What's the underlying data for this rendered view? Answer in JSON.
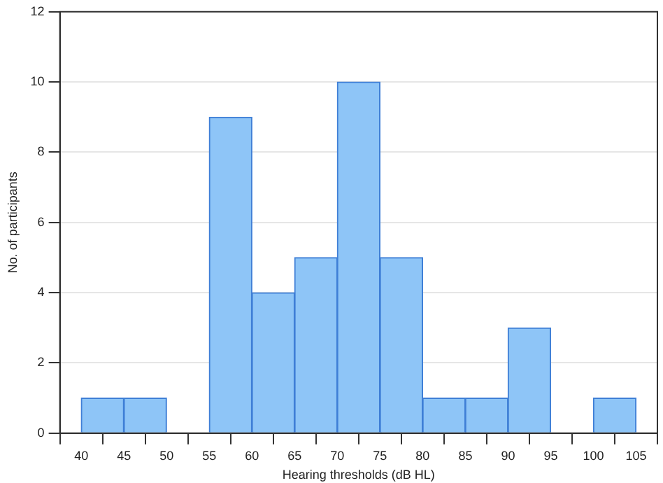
{
  "chart_data": {
    "type": "histogram",
    "xlabel": "Hearing thresholds (dB HL)",
    "ylabel": "No. of participants",
    "bins": [
      40,
      45,
      50,
      55,
      60,
      65,
      70,
      75,
      80,
      85,
      90,
      95,
      100,
      105
    ],
    "values": [
      1,
      1,
      0,
      9,
      4,
      5,
      10,
      5,
      1,
      1,
      3,
      0,
      1
    ],
    "color": "#8ec5f7",
    "xlim": [
      37.5,
      107.5
    ],
    "xticks": [
      40,
      45,
      50,
      55,
      60,
      65,
      70,
      75,
      80,
      85,
      90,
      95,
      100,
      105
    ],
    "ylim": [
      0,
      12
    ],
    "yticks": [
      0,
      2,
      4,
      6,
      8,
      10,
      12
    ],
    "grid": "y",
    "legend": false
  }
}
